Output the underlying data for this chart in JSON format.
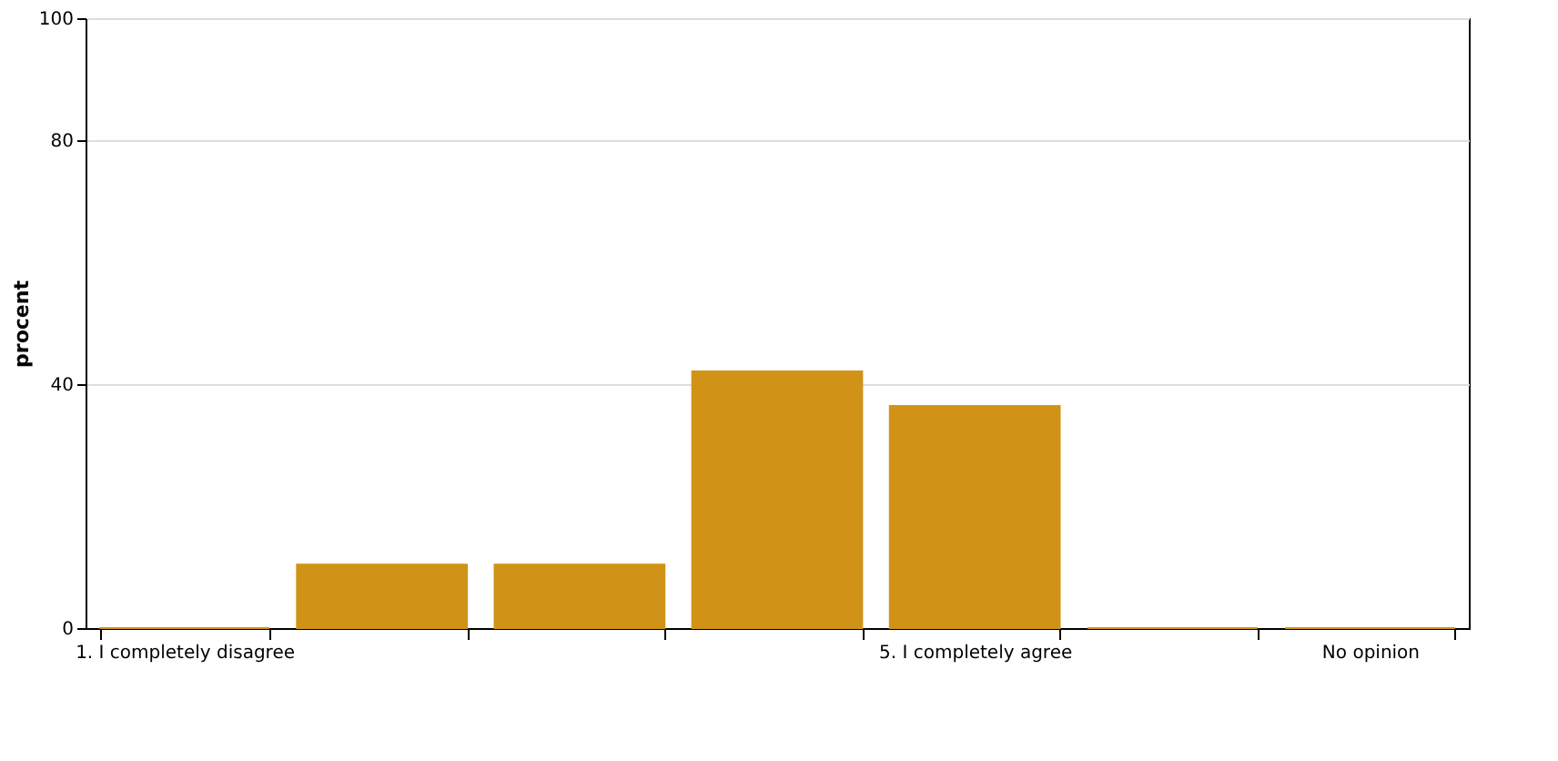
{
  "chart_data": {
    "type": "bar",
    "ylabel": "procent",
    "categories": [
      "1. I completely disagree",
      null,
      null,
      null,
      "5. I completely agree",
      null,
      "No opinion"
    ],
    "values": [
      0,
      10.4,
      10.4,
      42.1,
      36.4,
      0,
      0
    ],
    "color": "#d19317",
    "ylim": [
      0,
      100
    ],
    "yticks": [
      0,
      40,
      80,
      100
    ],
    "grid": "y"
  }
}
